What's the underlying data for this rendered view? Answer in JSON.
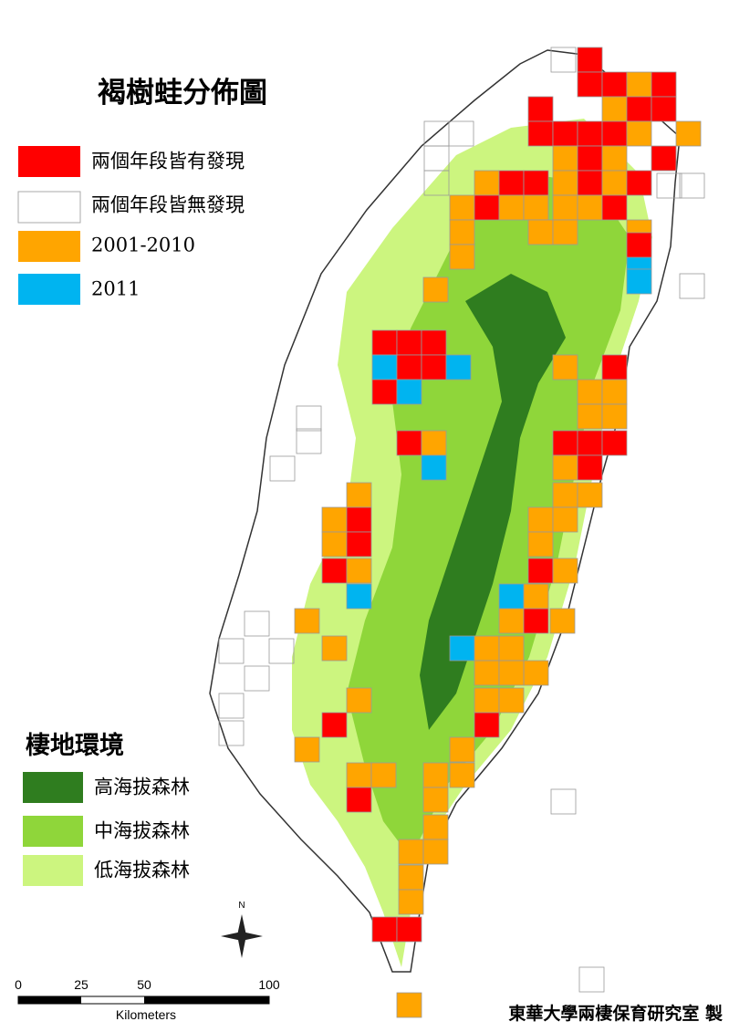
{
  "title": "褐樹蛙分佈圖",
  "legend": {
    "items": [
      "兩個年段皆有發現",
      "兩個年段皆無發現",
      "2001-2010",
      "2011"
    ]
  },
  "habitat": {
    "title": "棲地環境",
    "items": [
      "高海拔森林",
      "中海拔森林",
      "低海拔森林"
    ]
  },
  "scale_bar": {
    "labels": [
      0,
      25,
      50,
      100
    ],
    "unit": "Kilometers"
  },
  "north": "N",
  "credit": "東華大學兩棲保育研究室 製"
}
